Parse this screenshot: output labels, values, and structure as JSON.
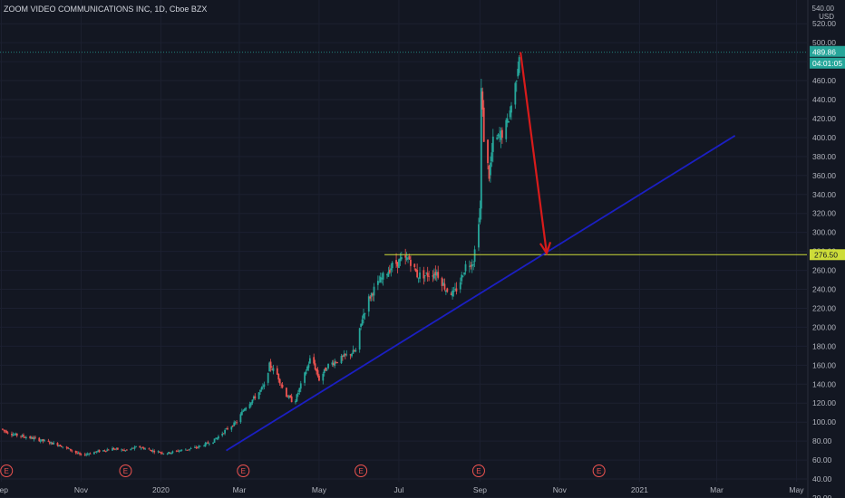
{
  "chart_title": "ZOOM VIDEO COMMUNICATIONS INC, 1D, Cboe BZX",
  "currency_lines": [
    "540.00",
    "USD"
  ],
  "colors": {
    "background": "#131722",
    "up": "#26a69a",
    "down": "#ef5350",
    "trendline": "#1b1fc2",
    "arrow": "#d81b1b",
    "support": "#cddc39",
    "last_price_label": "#26a69a",
    "axis_text": "#b2b5be"
  },
  "chart_data": {
    "type": "candlestick",
    "title": "ZOOM VIDEO COMMUNICATIONS INC, 1D, Cboe BZX",
    "xlabel": "",
    "ylabel": "",
    "currency": "USD",
    "xlim": [
      "2019-08-31",
      "2021-05-09"
    ],
    "ylim": [
      20,
      545
    ],
    "y_ticks": [
      20,
      40,
      60,
      80,
      100,
      120,
      140,
      160,
      180,
      200,
      220,
      240,
      260,
      280,
      300,
      320,
      340,
      360,
      380,
      400,
      420,
      440,
      460,
      480,
      500,
      520
    ],
    "x_ticks": [
      {
        "label": "Sep",
        "date": "2019-09-01"
      },
      {
        "label": "Nov",
        "date": "2019-11-01"
      },
      {
        "label": "2020",
        "date": "2020-01-01"
      },
      {
        "label": "Mar",
        "date": "2020-03-01"
      },
      {
        "label": "May",
        "date": "2020-05-01"
      },
      {
        "label": "Jul",
        "date": "2020-07-01"
      },
      {
        "label": "Sep",
        "date": "2020-09-01"
      },
      {
        "label": "Nov",
        "date": "2020-11-01"
      },
      {
        "label": "2021",
        "date": "2021-01-01"
      },
      {
        "label": "Mar",
        "date": "2021-03-01"
      },
      {
        "label": "May",
        "date": "2021-05-01"
      }
    ],
    "price_path": [
      [
        "2019-08-31",
        93
      ],
      [
        "2019-09-10",
        87
      ],
      [
        "2019-09-25",
        83
      ],
      [
        "2019-10-15",
        76
      ],
      [
        "2019-10-25",
        70
      ],
      [
        "2019-11-01",
        65
      ],
      [
        "2019-11-10",
        68
      ],
      [
        "2019-11-25",
        72
      ],
      [
        "2019-12-05",
        70
      ],
      [
        "2019-12-15",
        74
      ],
      [
        "2019-12-25",
        70
      ],
      [
        "2020-01-05",
        67
      ],
      [
        "2020-01-15",
        70
      ],
      [
        "2020-01-25",
        72
      ],
      [
        "2020-02-01",
        75
      ],
      [
        "2020-02-10",
        80
      ],
      [
        "2020-02-20",
        92
      ],
      [
        "2020-02-28",
        100
      ],
      [
        "2020-03-05",
        115
      ],
      [
        "2020-03-12",
        125
      ],
      [
        "2020-03-20",
        138
      ],
      [
        "2020-03-24",
        160
      ],
      [
        "2020-03-30",
        150
      ],
      [
        "2020-04-05",
        130
      ],
      [
        "2020-04-12",
        120
      ],
      [
        "2020-04-20",
        150
      ],
      [
        "2020-04-25",
        170
      ],
      [
        "2020-05-01",
        145
      ],
      [
        "2020-05-08",
        160
      ],
      [
        "2020-05-15",
        165
      ],
      [
        "2020-05-22",
        170
      ],
      [
        "2020-05-29",
        175
      ],
      [
        "2020-06-03",
        210
      ],
      [
        "2020-06-08",
        230
      ],
      [
        "2020-06-12",
        240
      ],
      [
        "2020-06-20",
        255
      ],
      [
        "2020-06-26",
        265
      ],
      [
        "2020-07-02",
        270
      ],
      [
        "2020-07-09",
        272
      ],
      [
        "2020-07-15",
        255
      ],
      [
        "2020-07-22",
        255
      ],
      [
        "2020-07-30",
        258
      ],
      [
        "2020-08-06",
        240
      ],
      [
        "2020-08-12",
        235
      ],
      [
        "2020-08-16",
        245
      ],
      [
        "2020-08-21",
        265
      ],
      [
        "2020-08-27",
        270
      ],
      [
        "2020-09-01",
        325
      ],
      [
        "2020-09-02",
        450
      ],
      [
        "2020-09-04",
        400
      ],
      [
        "2020-09-08",
        360
      ],
      [
        "2020-09-11",
        395
      ],
      [
        "2020-09-16",
        400
      ],
      [
        "2020-09-22",
        415
      ],
      [
        "2020-09-28",
        455
      ],
      [
        "2020-10-01",
        489.86
      ]
    ],
    "earnings_markers": [
      "2019-09-05",
      "2019-12-05",
      "2020-03-04",
      "2020-06-02",
      "2020-08-31",
      "2020-12-01"
    ],
    "earnings_label": "E",
    "trendline": {
      "start": [
        "2020-02-20",
        70
      ],
      "end": [
        "2021-03-15",
        402
      ]
    },
    "forecast_arrow": {
      "start": [
        "2020-10-02",
        490
      ],
      "end": [
        "2020-10-22",
        278
      ]
    },
    "support_level": {
      "value": 276.5,
      "label": "276.50",
      "from": "2020-06-20"
    },
    "last_price": {
      "value": 489.86,
      "label": "489.86",
      "countdown": "04:01:05"
    }
  }
}
